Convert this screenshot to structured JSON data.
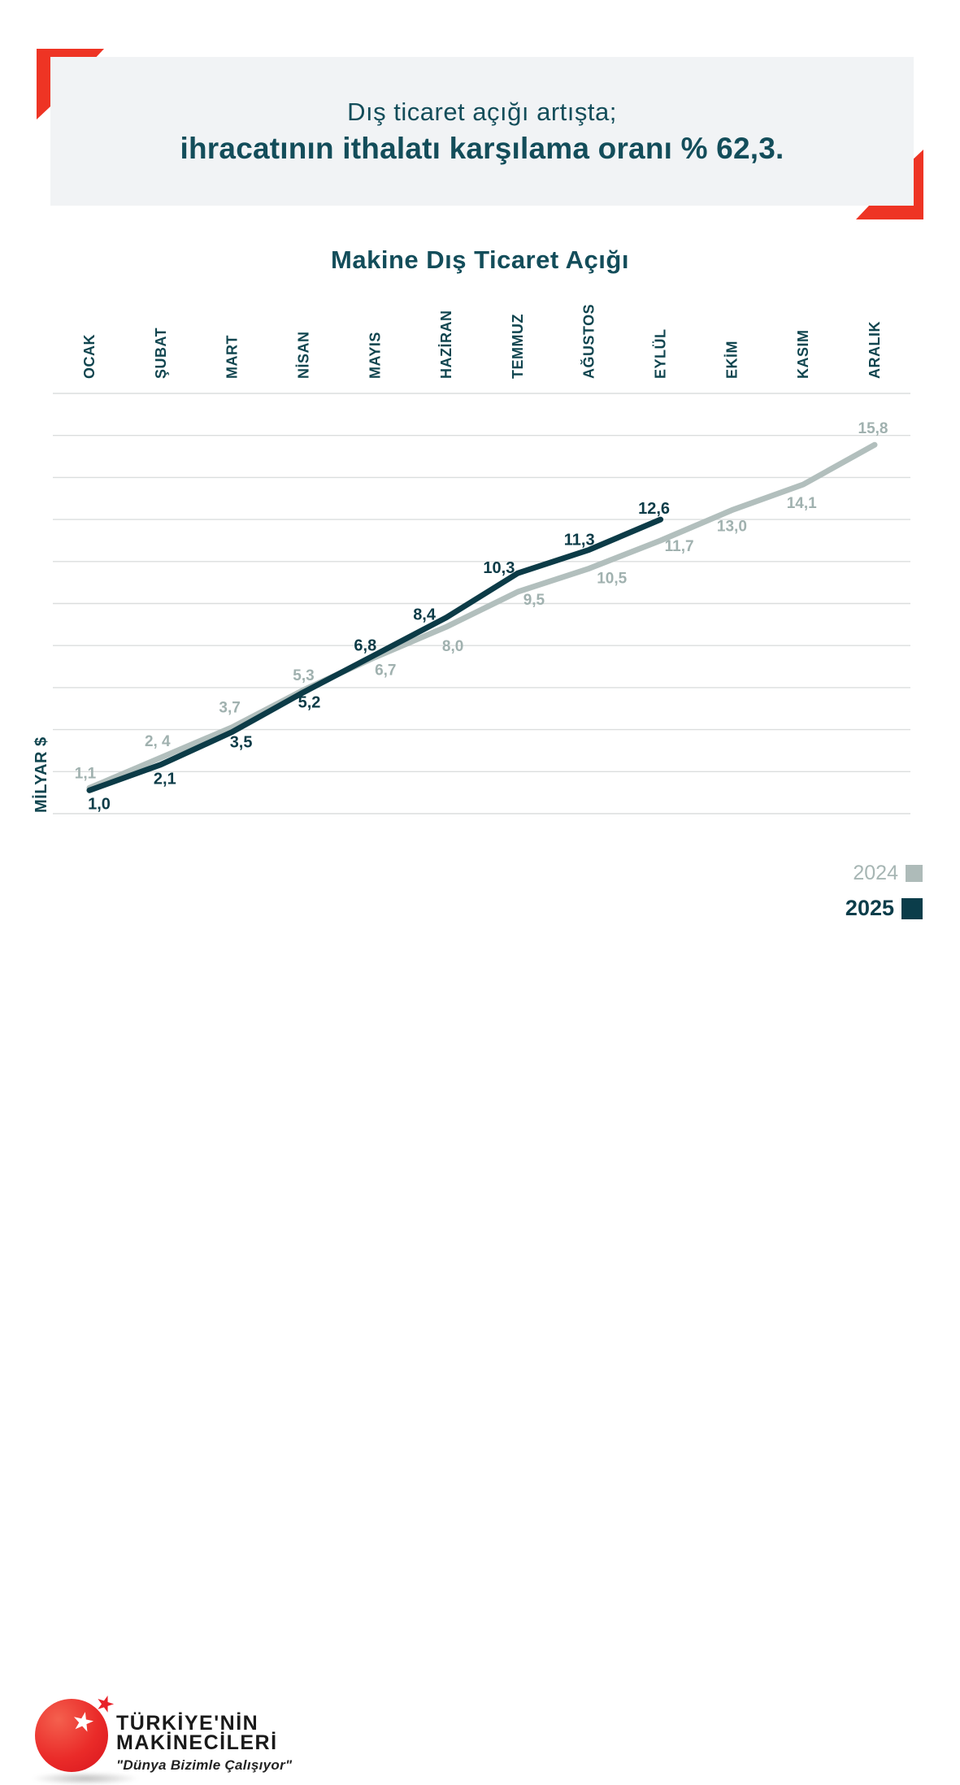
{
  "header": {
    "line1": "Dış ticaret açığı artışta;",
    "line2": "ihracatının ithalatı karşılama oranı % 62,3."
  },
  "chart_data": {
    "type": "line",
    "title": "Makine Dış Ticaret Açığı",
    "ylabel": "MİLYAR $",
    "categories": [
      "OCAK",
      "ŞUBAT",
      "MART",
      "NİSAN",
      "MAYIS",
      "HAZİRAN",
      "TEMMUZ",
      "AĞUSTOS",
      "EYLÜL",
      "EKİM",
      "KASIM",
      "ARALIK"
    ],
    "series": [
      {
        "name": "2024",
        "color": "#b2bfbd",
        "label_color": "#a0b1af",
        "values": [
          1.1,
          2.4,
          3.7,
          5.3,
          6.7,
          8.0,
          9.5,
          10.5,
          11.7,
          13.0,
          14.1,
          15.8
        ],
        "labels": [
          "1,1",
          "2, 4",
          "3,7",
          "5,3",
          "6,7",
          "8,0",
          "9,5",
          "10,5",
          "11,7",
          "13,0",
          "14,1",
          "15,8"
        ],
        "label_offsets": [
          [
            -5,
            -19
          ],
          [
            -4,
            -21
          ],
          [
            -3,
            -25
          ],
          [
            0,
            -19
          ],
          [
            13,
            15
          ],
          [
            8,
            23
          ],
          [
            20,
            9
          ],
          [
            28,
            11
          ],
          [
            23,
            6
          ],
          [
            0,
            19
          ],
          [
            -2,
            22
          ],
          [
            -2,
            -21
          ]
        ]
      },
      {
        "name": "2025",
        "color": "#0c3b47",
        "label_color": "#0c3b47",
        "values": [
          1.0,
          2.1,
          3.5,
          5.2,
          6.8,
          8.4,
          10.3,
          11.3,
          12.6
        ],
        "labels": [
          "1,0",
          "2,1",
          "3,5",
          "5,2",
          "6,8",
          "8,4",
          "10,3",
          "11,3",
          "12,6"
        ],
        "label_offsets": [
          [
            12,
            16
          ],
          [
            5,
            17
          ],
          [
            11,
            12
          ],
          [
            7,
            12
          ],
          [
            -12,
            -12
          ],
          [
            -27,
            -4
          ],
          [
            -23,
            -7
          ],
          [
            -12,
            -13
          ],
          [
            -8,
            -14
          ]
        ]
      }
    ],
    "ylim": [
      0,
      18
    ],
    "gridline_count": 11,
    "grid": "horizontal",
    "legend_position": "bottom-right"
  },
  "legend": {
    "items": [
      {
        "label": "2024",
        "color": "#aebbb9"
      },
      {
        "label": "2025",
        "color": "#0b3d4a"
      }
    ]
  },
  "logo": {
    "name_line1": "TÜRKİYE'NİN",
    "name_line2": "MAKİNECİLERİ",
    "slogan": "\"Dünya Bizimle Çalışıyor\""
  },
  "colors": {
    "accent_red": "#ee3424",
    "teal_text": "#134d5a",
    "teal_line": "#0c3b47",
    "gray_line": "#b2bfbd",
    "banner_bg": "#f1f3f5",
    "gridline": "#dbdede"
  }
}
